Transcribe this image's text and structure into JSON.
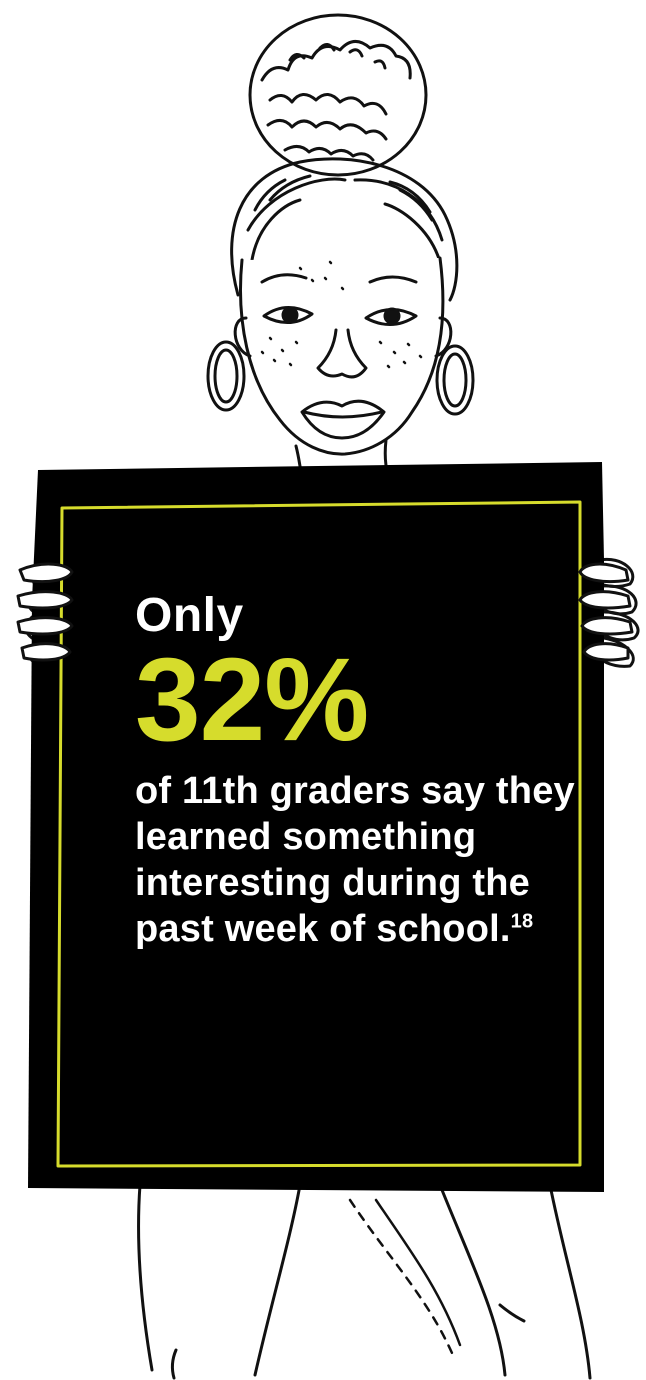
{
  "sign": {
    "lead": "Only",
    "stat": "32%",
    "statement": "of 11th graders say they learned something interesting during the past week of school.",
    "footnote": "18"
  },
  "colors": {
    "board": "#000000",
    "accent": "#d6dc2c",
    "text": "#ffffff",
    "ink": "#111111"
  },
  "illustration": {
    "subject": "line-drawing-girl-holding-black-sign"
  }
}
